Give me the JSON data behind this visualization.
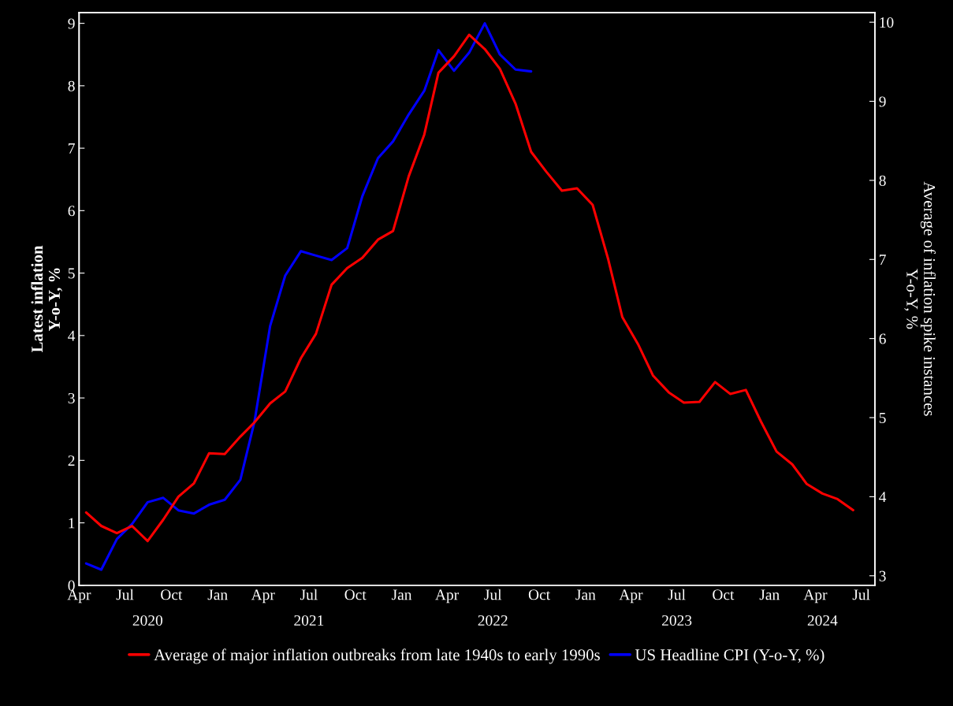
{
  "chart_data": {
    "type": "line",
    "ylabel": "Latest inflation\nY-o-Y, %",
    "y2label": "Average of inflation spike instances\nY-o-Y, %",
    "x": [
      "2020-04-15",
      "2020-05-15",
      "2020-06-15",
      "2020-07-15",
      "2020-08-15",
      "2020-09-15",
      "2020-10-15",
      "2020-11-15",
      "2020-12-15",
      "2021-01-15",
      "2021-02-15",
      "2021-03-15",
      "2021-04-15",
      "2021-05-15",
      "2021-06-15",
      "2021-07-15",
      "2021-08-15",
      "2021-09-15",
      "2021-10-15",
      "2021-11-15",
      "2021-12-15",
      "2022-01-15",
      "2022-02-15",
      "2022-03-15",
      "2022-04-15",
      "2022-05-15",
      "2022-06-15",
      "2022-07-15",
      "2022-08-15",
      "2022-09-15",
      "2022-10-15",
      "2022-11-15",
      "2022-12-15",
      "2023-01-15",
      "2023-02-15",
      "2023-03-15",
      "2023-04-15",
      "2023-05-15",
      "2023-06-15",
      "2023-07-15",
      "2023-08-15",
      "2023-09-15",
      "2023-10-15",
      "2023-11-15",
      "2023-12-15",
      "2024-01-15",
      "2024-02-15",
      "2024-03-15",
      "2024-04-15",
      "2024-05-15",
      "2024-06-15"
    ],
    "series": [
      {
        "name": "Average of major inflation outbreaks from late 1940s to early 1990s",
        "color": "#ff0000",
        "axis": "y2",
        "values": [
          3.8,
          3.63,
          3.54,
          3.63,
          3.44,
          3.71,
          4.0,
          4.17,
          4.55,
          4.54,
          4.76,
          4.94,
          5.18,
          5.33,
          5.75,
          6.06,
          6.68,
          6.89,
          7.02,
          7.25,
          7.36,
          8.05,
          8.58,
          9.36,
          9.57,
          9.84,
          9.66,
          9.41,
          8.97,
          8.36,
          8.11,
          7.87,
          7.9,
          7.69,
          7.0,
          6.27,
          5.93,
          5.53,
          5.32,
          5.19,
          5.2,
          5.45,
          5.3,
          5.35,
          4.95,
          4.57,
          4.41,
          4.16,
          4.04,
          3.97,
          3.83
        ]
      },
      {
        "name": "US Headline CPI (Y-o-Y, %)",
        "color": "#0000ff",
        "x": [
          "2020-04-15",
          "2020-05-15",
          "2020-06-15",
          "2020-07-15",
          "2020-08-15",
          "2020-09-15",
          "2020-10-15",
          "2020-11-15",
          "2020-12-15",
          "2021-01-15",
          "2021-02-15",
          "2021-03-15",
          "2021-04-15",
          "2021-05-15",
          "2021-06-15",
          "2021-07-15",
          "2021-08-15",
          "2021-09-15",
          "2021-10-15",
          "2021-11-15",
          "2021-12-15",
          "2022-01-15",
          "2022-02-15",
          "2022-03-15",
          "2022-04-15",
          "2022-05-15",
          "2022-06-15",
          "2022-07-15",
          "2022-08-15",
          "2022-09-15"
        ],
        "values": [
          0.35,
          0.25,
          0.74,
          0.98,
          1.33,
          1.4,
          1.2,
          1.15,
          1.29,
          1.37,
          1.69,
          2.62,
          4.15,
          4.96,
          5.35,
          5.28,
          5.21,
          5.4,
          6.23,
          6.84,
          7.11,
          7.54,
          7.92,
          8.57,
          8.24,
          8.53,
          9.0,
          8.5,
          8.26,
          8.23
        ]
      }
    ],
    "xlim": [
      "2020-04-01",
      "2024-07-28"
    ],
    "xticks": [
      {
        "value": "2020-04",
        "label": "Apr"
      },
      {
        "value": "2020-07",
        "label": "Jul"
      },
      {
        "value": "2020-10",
        "label": "Oct"
      },
      {
        "value": "2021-01",
        "label": "Jan"
      },
      {
        "value": "2021-04",
        "label": "Apr"
      },
      {
        "value": "2021-07",
        "label": "Jul"
      },
      {
        "value": "2021-10",
        "label": "Oct"
      },
      {
        "value": "2022-01",
        "label": "Jan"
      },
      {
        "value": "2022-04",
        "label": "Apr"
      },
      {
        "value": "2022-07",
        "label": "Jul"
      },
      {
        "value": "2022-10",
        "label": "Oct"
      },
      {
        "value": "2023-01",
        "label": "Jan"
      },
      {
        "value": "2023-04",
        "label": "Apr"
      },
      {
        "value": "2023-07",
        "label": "Jul"
      },
      {
        "value": "2023-10",
        "label": "Oct"
      },
      {
        "value": "2024-01",
        "label": "Jan"
      },
      {
        "value": "2024-04",
        "label": "Apr"
      },
      {
        "value": "2024-07",
        "label": "Jul"
      }
    ],
    "x2lim": [
      "2020-04-01",
      "2024-07-28"
    ],
    "x2ticks": [
      {
        "value": "2020-08-15",
        "label": "2020"
      },
      {
        "value": "2021-07-01",
        "label": "2021"
      },
      {
        "value": "2022-07-01",
        "label": "2022"
      },
      {
        "value": "2023-07-01",
        "label": "2023"
      },
      {
        "value": "2024-04-15",
        "label": "2024"
      }
    ],
    "ylim": [
      0,
      9.17
    ],
    "yticks": [
      0,
      1,
      2,
      3,
      4,
      5,
      6,
      7,
      8,
      9
    ],
    "y2lim": [
      2.88,
      10.12
    ],
    "y2ticks": [
      3,
      4,
      5,
      6,
      7,
      8,
      9,
      10
    ],
    "grid": false,
    "legend": "bottom",
    "marker": "none",
    "line_style": "solid"
  }
}
